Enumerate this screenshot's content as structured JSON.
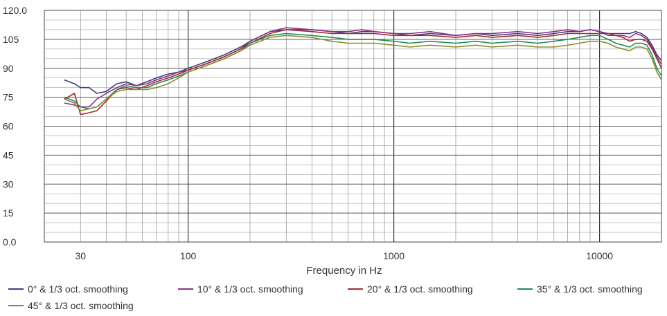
{
  "chart_data": {
    "type": "line",
    "xlabel": "Frequency in Hz",
    "x_scale": "log",
    "xlim": [
      20,
      20000
    ],
    "ylim": [
      0,
      120
    ],
    "grid": true,
    "x_ticks": [
      {
        "value": 30,
        "label": "30"
      },
      {
        "value": 100,
        "label": "100"
      },
      {
        "value": 1000,
        "label": "1000"
      },
      {
        "value": 10000,
        "label": "10000"
      }
    ],
    "y_ticks": [
      {
        "value": 0,
        "label": "0.0"
      },
      {
        "value": 15,
        "label": "15"
      },
      {
        "value": 30,
        "label": "30"
      },
      {
        "value": 45,
        "label": "45"
      },
      {
        "value": 60,
        "label": "60"
      },
      {
        "value": 75,
        "label": "75"
      },
      {
        "value": 90,
        "label": "90"
      },
      {
        "value": 105,
        "label": "105"
      },
      {
        "value": 120,
        "label": "120.0"
      }
    ],
    "x": [
      25,
      28,
      30,
      33,
      36,
      40,
      45,
      50,
      56,
      63,
      70,
      80,
      90,
      100,
      120,
      150,
      180,
      200,
      250,
      300,
      400,
      500,
      600,
      700,
      800,
      1000,
      1200,
      1500,
      2000,
      2500,
      3000,
      4000,
      5000,
      6000,
      7000,
      8000,
      9000,
      10000,
      11000,
      12000,
      13000,
      14000,
      15000,
      16000,
      17000,
      18000,
      19000,
      20000
    ],
    "series": [
      {
        "name": "0° & 1/3 oct. smoothing",
        "color": "#3b3f7a",
        "values": [
          84,
          82,
          80,
          80,
          77,
          78,
          82,
          83,
          81,
          83,
          85,
          87,
          88,
          90,
          93,
          97,
          101,
          104,
          109,
          110,
          110,
          109,
          108,
          109,
          109,
          108,
          107,
          108,
          107,
          108,
          107,
          108,
          107,
          108,
          109,
          109,
          110,
          109,
          108,
          108,
          108,
          108,
          109,
          108,
          106,
          102,
          97,
          94
        ]
      },
      {
        "name": "10° & 1/3 oct. smoothing",
        "color": "#8e2e8a",
        "values": [
          72,
          71,
          70,
          70,
          74,
          77,
          80,
          82,
          81,
          82,
          84,
          86,
          88,
          89,
          92,
          96,
          100,
          104,
          109,
          111,
          110,
          109,
          109,
          110,
          109,
          108,
          108,
          109,
          107,
          108,
          108,
          109,
          108,
          109,
          110,
          109,
          110,
          109,
          107,
          107,
          107,
          106,
          108,
          107,
          105,
          101,
          96,
          92
        ]
      },
      {
        "name": "20° & 1/3 oct. smoothing",
        "color": "#a32a2e",
        "values": [
          74,
          77,
          66,
          67,
          68,
          73,
          79,
          80,
          79,
          81,
          83,
          85,
          87,
          89,
          92,
          96,
          100,
          103,
          108,
          110,
          109,
          108,
          108,
          108,
          108,
          107,
          107,
          107,
          106,
          107,
          106,
          107,
          106,
          107,
          108,
          108,
          108,
          108,
          108,
          107,
          106,
          104,
          105,
          105,
          104,
          100,
          95,
          90
        ]
      },
      {
        "name": "35° & 1/3 oct. smoothing",
        "color": "#1f8a5e",
        "values": [
          75,
          73,
          70,
          69,
          70,
          74,
          79,
          81,
          80,
          80,
          82,
          84,
          86,
          88,
          91,
          95,
          99,
          103,
          107,
          108,
          107,
          106,
          105,
          105,
          105,
          104,
          103,
          104,
          103,
          104,
          103,
          104,
          103,
          104,
          105,
          106,
          107,
          107,
          105,
          103,
          102,
          101,
          103,
          103,
          102,
          97,
          90,
          86
        ]
      },
      {
        "name": "45° & 1/3 oct. smoothing",
        "color": "#8a8a2c",
        "values": [
          74,
          72,
          68,
          69,
          70,
          74,
          78,
          79,
          79,
          79,
          80,
          82,
          85,
          88,
          91,
          95,
          99,
          102,
          106,
          107,
          106,
          104,
          103,
          103,
          103,
          102,
          101,
          102,
          101,
          102,
          101,
          102,
          101,
          101,
          102,
          103,
          104,
          104,
          103,
          101,
          100,
          99,
          101,
          101,
          100,
          95,
          88,
          84
        ]
      }
    ]
  }
}
